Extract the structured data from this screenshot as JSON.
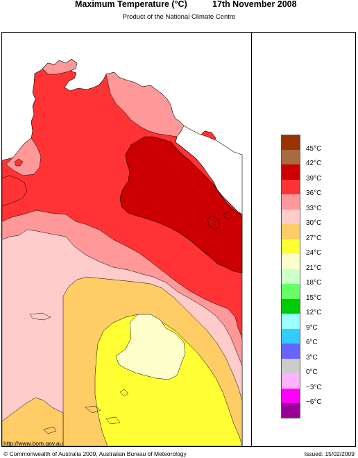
{
  "header": {
    "title": "Maximum Temperature (°C)",
    "date": "17th November 2008",
    "subtitle": "Product of the National Climate Centre"
  },
  "legend": {
    "bands": [
      {
        "color": "#993300"
      },
      {
        "color": "#a86b3f"
      },
      {
        "color": "#cc0000"
      },
      {
        "color": "#ff3333"
      },
      {
        "color": "#ff9999"
      },
      {
        "color": "#ffcccc"
      },
      {
        "color": "#ffcc66"
      },
      {
        "color": "#ffff33"
      },
      {
        "color": "#ffffcc"
      },
      {
        "color": "#ccffcc"
      },
      {
        "color": "#66ff66"
      },
      {
        "color": "#00cc00"
      },
      {
        "color": "#99ffff"
      },
      {
        "color": "#33ccff"
      },
      {
        "color": "#6666ff"
      },
      {
        "color": "#cccccc"
      },
      {
        "color": "#ffb3ff"
      },
      {
        "color": "#ff00ff"
      },
      {
        "color": "#990099"
      }
    ],
    "labels": [
      "45°C",
      "42°C",
      "39°C",
      "36°C",
      "33°C",
      "30°C",
      "27°C",
      "24°C",
      "21°C",
      "18°C",
      "15°C",
      "12°C",
      "9°C",
      "6°C",
      "3°C",
      "0°C",
      "−3°C",
      "−6°C"
    ]
  },
  "footer": {
    "url": "http://www.bom.gov.au",
    "copyright": "© Commonwealth of Australia 2009, Australian Bureau of Meteorology",
    "issued": "Issued: 15/02/2009"
  }
}
